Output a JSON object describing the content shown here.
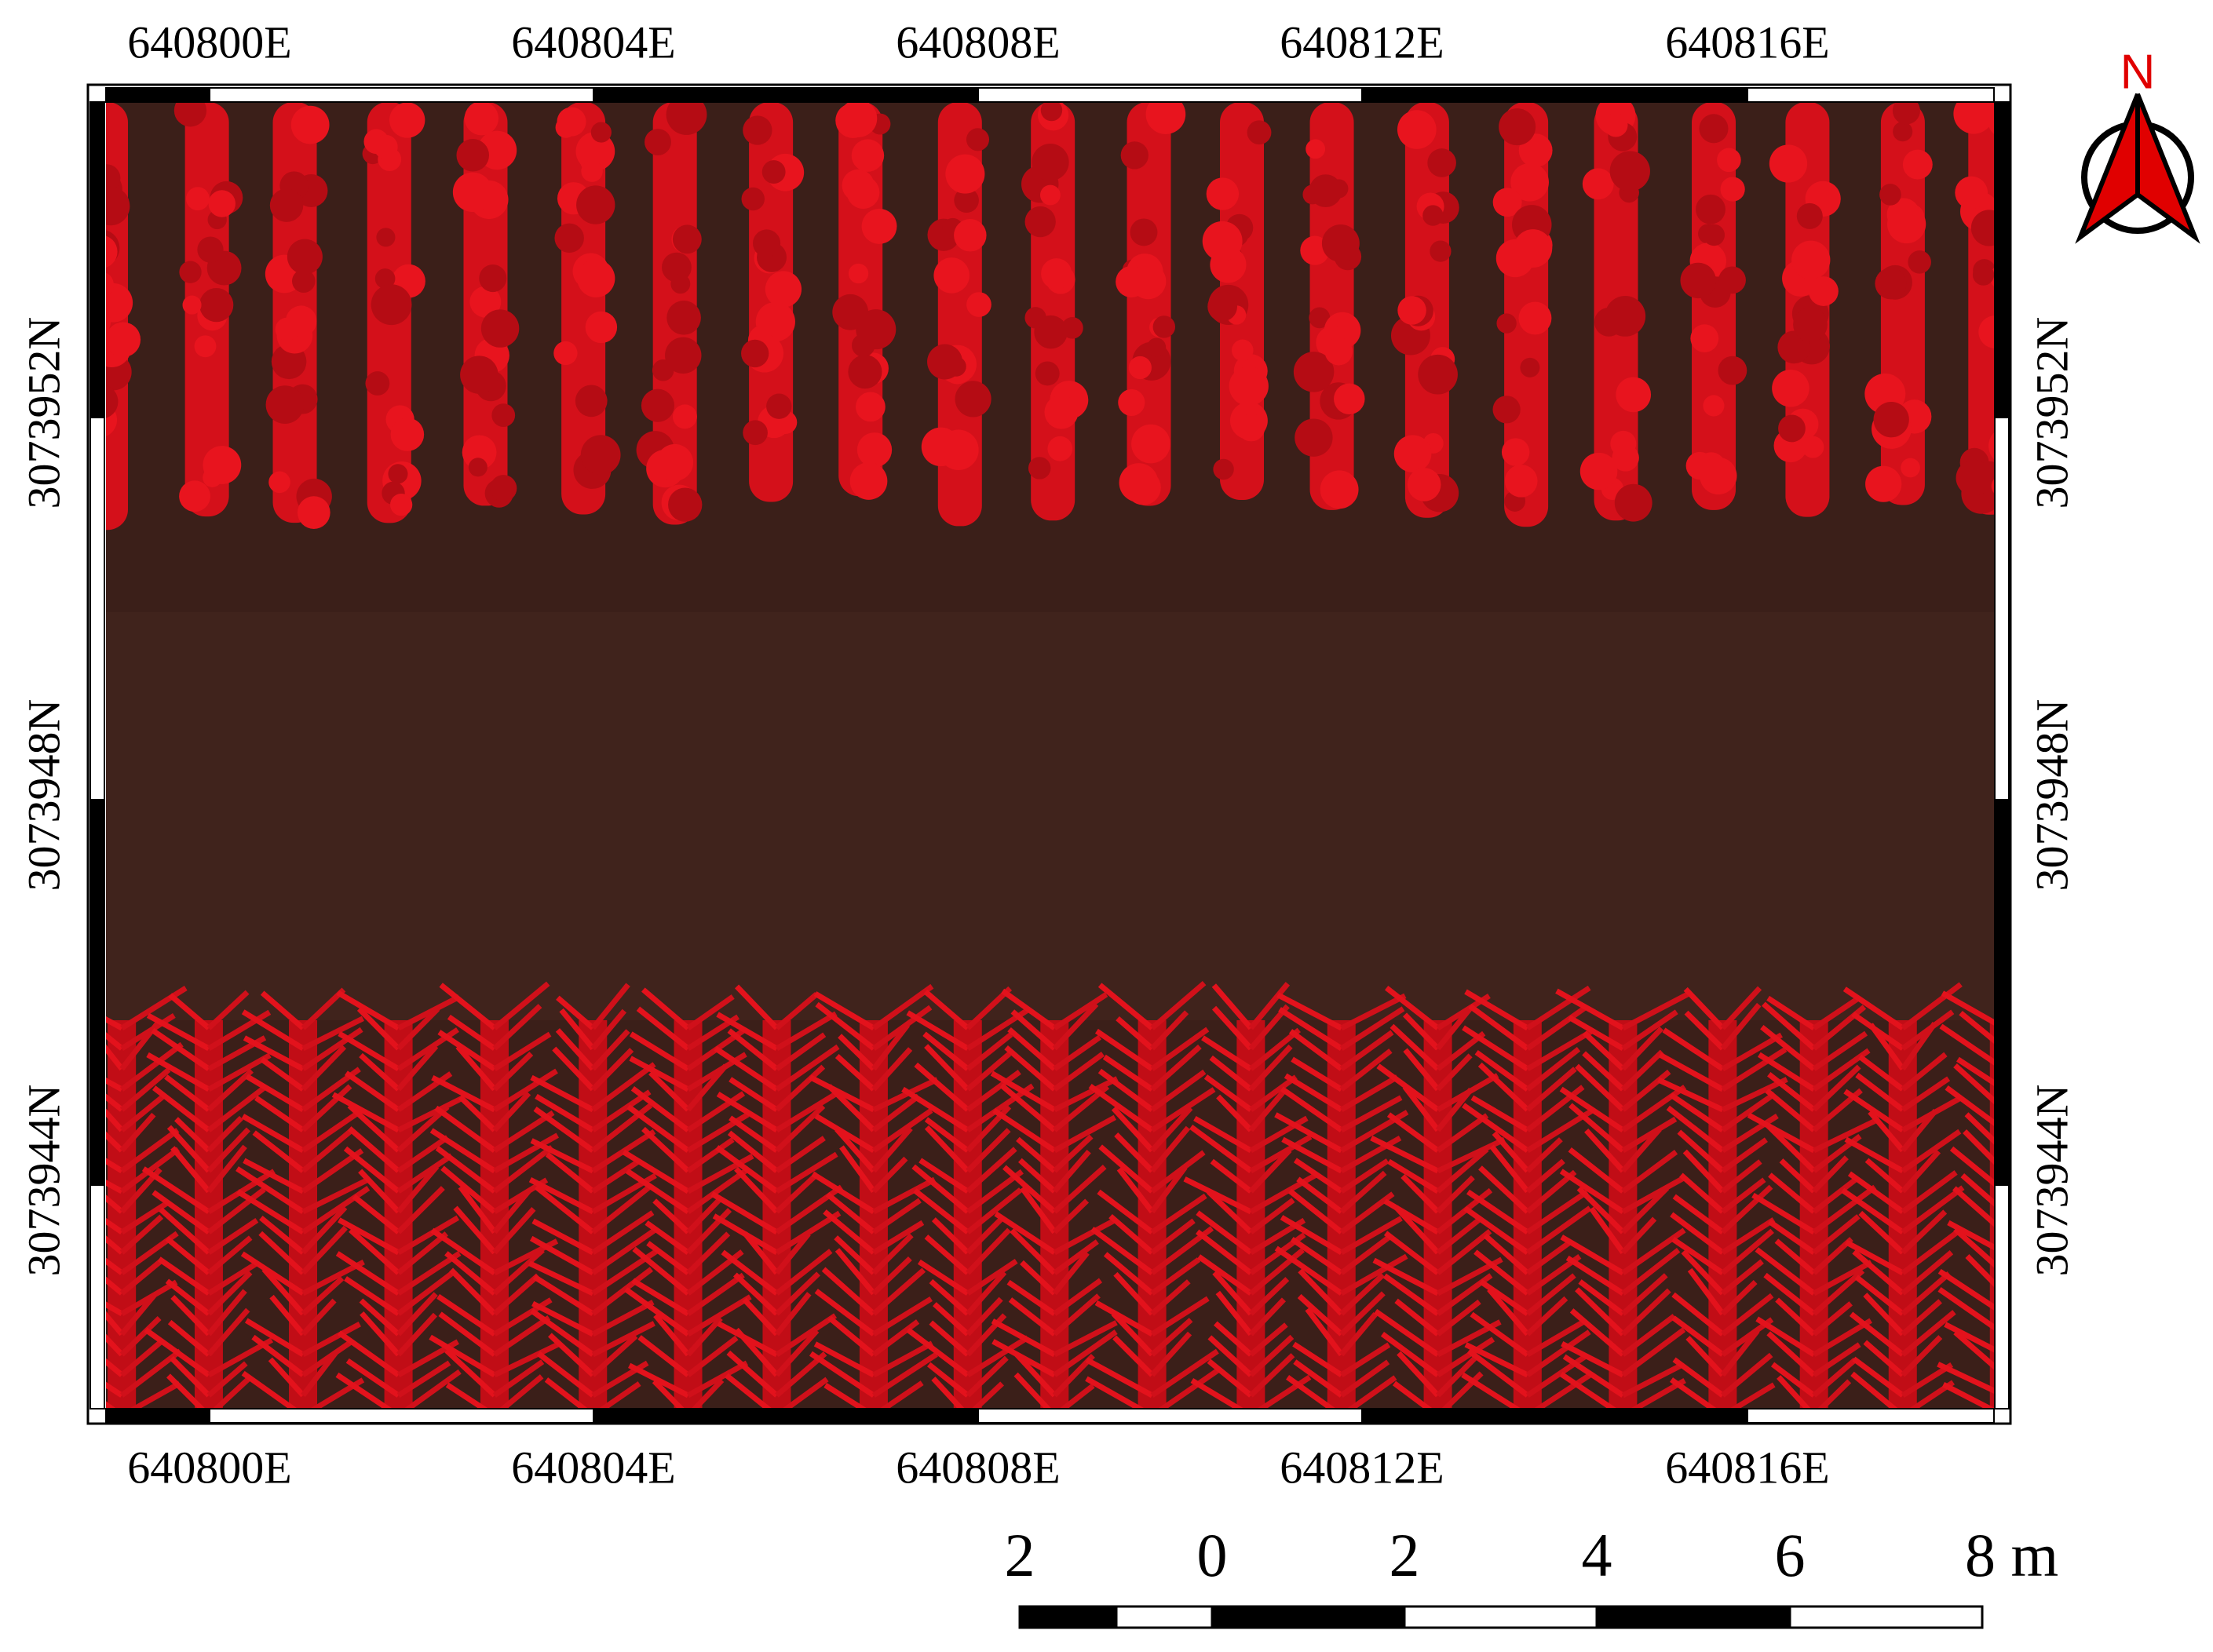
{
  "x_labels": [
    "640800E",
    "640804E",
    "640808E",
    "640812E",
    "640816E"
  ],
  "y_labels": [
    "3073952N",
    "3073948N",
    "3073944N"
  ],
  "north_label": "N",
  "scale_bar": {
    "labels": [
      "2",
      "0",
      "2",
      "4",
      "6",
      "8 m"
    ]
  }
}
